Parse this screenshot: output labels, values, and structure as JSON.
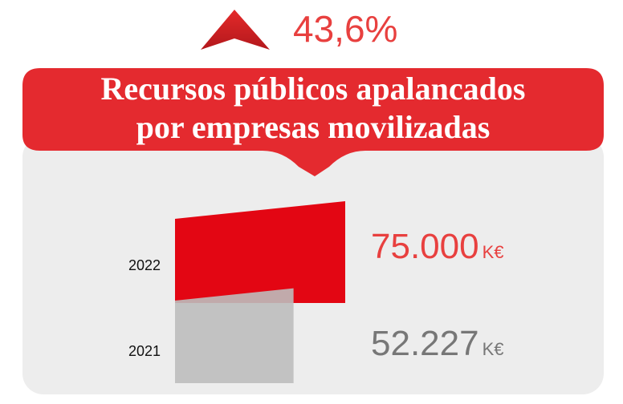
{
  "chart_data": {
    "type": "bar",
    "title": [
      "Recursos públicos apalancados",
      "por empresas movilizadas"
    ],
    "annotation": "43,6%",
    "categories": [
      "2022",
      "2021"
    ],
    "values": [
      75000,
      52227
    ],
    "value_labels": [
      "75.000",
      "52.227"
    ],
    "unit": "K€",
    "colors": [
      "#e30613",
      "#bcbcbc"
    ],
    "label_colors": [
      "#e8403f",
      "#777777"
    ]
  }
}
